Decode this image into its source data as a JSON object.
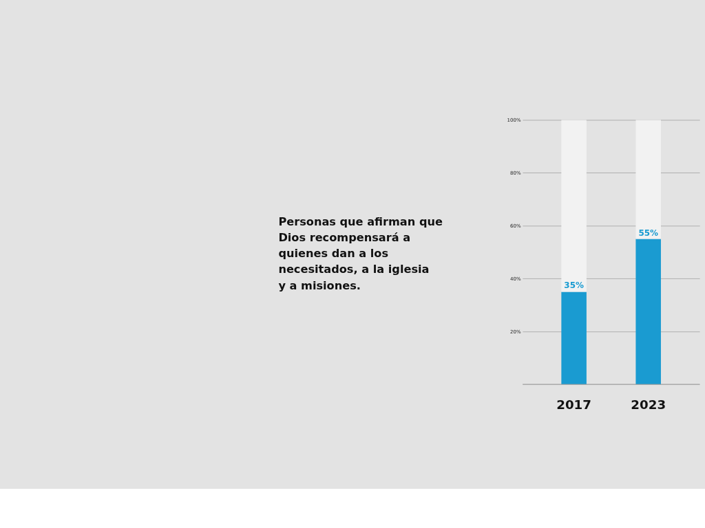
{
  "chart_data": {
    "type": "bar",
    "title": "Personas que afirman que Dios recompensará a quienes dan a los necesitados, a la iglesia y a misiones.",
    "categories": [
      "2017",
      "2023"
    ],
    "stacked": true,
    "series": [
      {
        "color": "#1a9bd1",
        "values": [
          35,
          55
        ],
        "value_labels": [
          "35%",
          "55%"
        ]
      },
      {
        "color": "#f2f2f2",
        "values": [
          65,
          45
        ]
      }
    ],
    "ylim": [
      0,
      100
    ],
    "yticks": [
      {
        "value": 0,
        "label": null
      },
      {
        "value": 20,
        "label": "20%"
      },
      {
        "value": 40,
        "label": "40%"
      },
      {
        "value": 60,
        "label": "60%"
      },
      {
        "value": 80,
        "label": "80%"
      },
      {
        "value": 100,
        "label": "100%"
      }
    ],
    "grid": "y",
    "legend": false
  }
}
